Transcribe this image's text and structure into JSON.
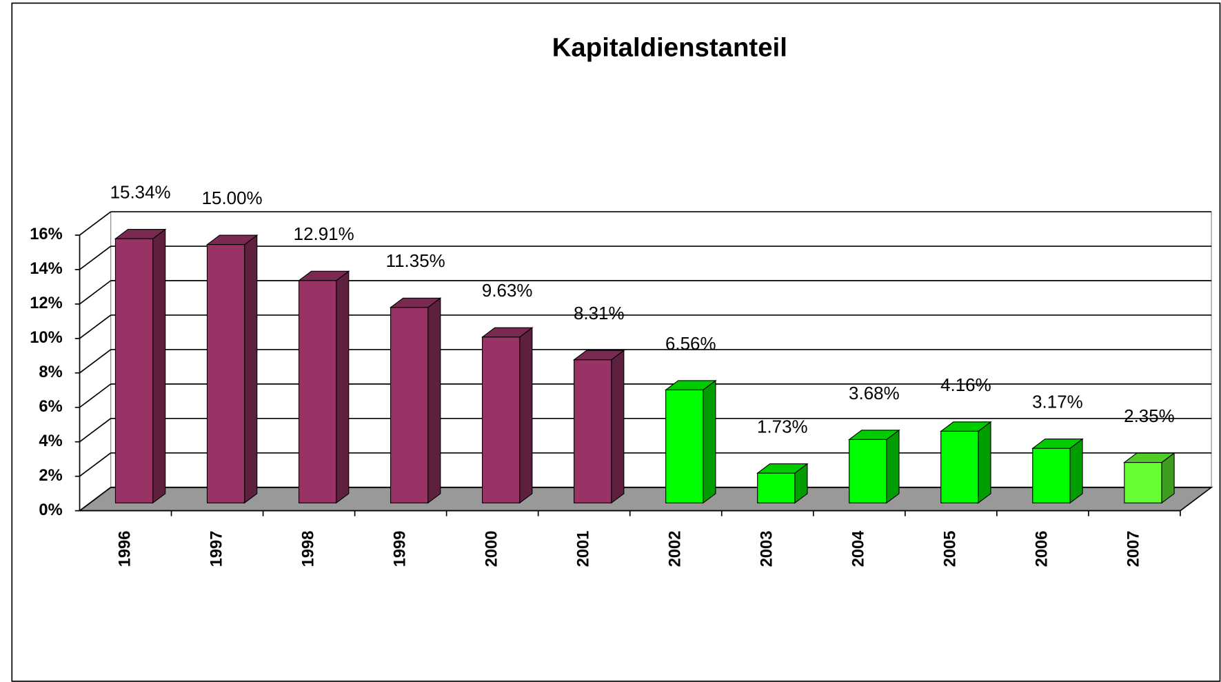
{
  "chart_data": {
    "type": "bar3d",
    "title": "Kapitaldienstanteil",
    "categories": [
      "1996",
      "1997",
      "1998",
      "1999",
      "2000",
      "2001",
      "2002",
      "2003",
      "2004",
      "2005",
      "2006",
      "2007"
    ],
    "values": [
      15.34,
      15.0,
      12.91,
      11.35,
      9.63,
      8.31,
      6.56,
      1.73,
      3.68,
      4.16,
      3.17,
      2.35
    ],
    "value_labels": [
      "15.34%",
      "15.00%",
      "12.91%",
      "11.35%",
      "9.63%",
      "8.31%",
      "6.56%",
      "1.73%",
      "3.68%",
      "4.16%",
      "3.17%",
      "2.35%"
    ],
    "colors": [
      "#993366",
      "#993366",
      "#993366",
      "#993366",
      "#993366",
      "#993366",
      "#00ff00",
      "#00ff00",
      "#00ff00",
      "#00ff00",
      "#00ff00",
      "#66ff33"
    ],
    "ylim": [
      0,
      16
    ],
    "yticks": [
      {
        "value": 0,
        "label": "0%"
      },
      {
        "value": 2,
        "label": "2%"
      },
      {
        "value": 4,
        "label": "4%"
      },
      {
        "value": 6,
        "label": "6%"
      },
      {
        "value": 8,
        "label": "8%"
      },
      {
        "value": 10,
        "label": "10%"
      },
      {
        "value": 12,
        "label": "12%"
      },
      {
        "value": 14,
        "label": "14%"
      },
      {
        "value": 16,
        "label": "16%"
      }
    ],
    "grid": true
  }
}
